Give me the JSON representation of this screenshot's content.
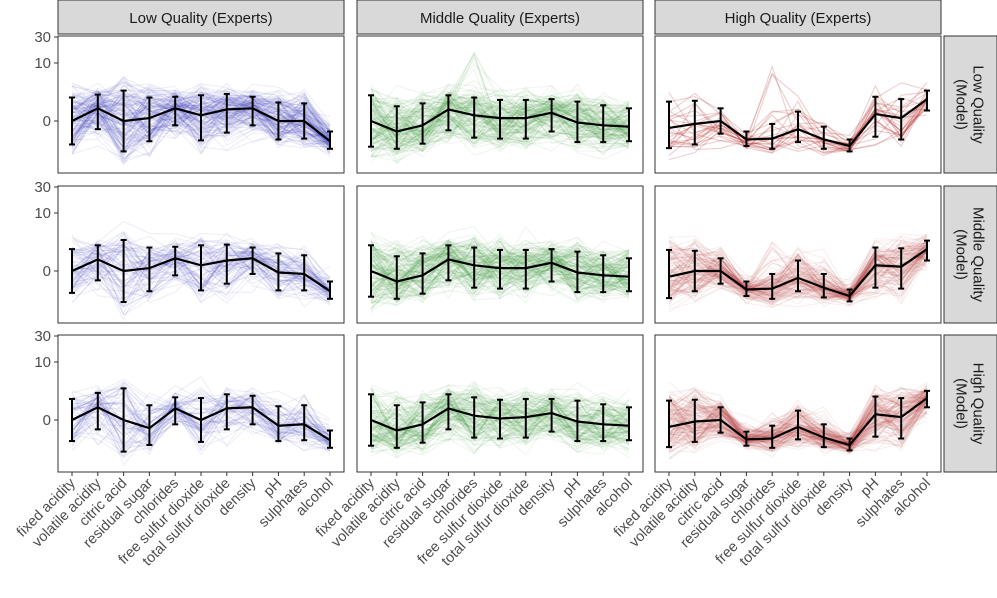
{
  "chart_data": {
    "type": "line",
    "description_kind": "faceted parallel-coordinates plot with mean line and error bars",
    "column_facets": [
      "Low Quality (Experts)",
      "Middle Quality (Experts)",
      "High Quality (Experts)"
    ],
    "row_facets": [
      {
        "line1": "Low Quality",
        "line2": "(Model)"
      },
      {
        "line1": "Middle Quality",
        "line2": "(Model)"
      },
      {
        "line1": "High Quality",
        "line2": "(Model)"
      }
    ],
    "categories": [
      "fixed acidity",
      "volatile acidity",
      "citric acid",
      "residual sugar",
      "chlorides",
      "free sulfur dioxide",
      "total sulfur dioxide",
      "density",
      "pH",
      "sulphates",
      "alcohol"
    ],
    "y_ticks": [
      0,
      10,
      30
    ],
    "y_scale": "pseudo-log (signed)",
    "ylim": [
      -7,
      30
    ],
    "column_colors": [
      "#1f1fa8",
      "#1e8a1e",
      "#b22222"
    ],
    "mean_line_color": "#000000",
    "panels": [
      {
        "row": 0,
        "col": 0,
        "density": 1.0,
        "spike": 0.0,
        "means": [
          0.0,
          1.0,
          0.0,
          0.2,
          1.0,
          0.4,
          0.9,
          1.0,
          0.0,
          0.0,
          -1.8
        ],
        "errors": [
          2.2,
          1.6,
          3.2,
          2.0,
          1.3,
          2.1,
          1.8,
          1.3,
          1.6,
          1.5,
          1.0
        ]
      },
      {
        "row": 0,
        "col": 1,
        "density": 1.0,
        "spike": 18.0,
        "means": [
          0.0,
          -0.8,
          -0.3,
          0.9,
          0.4,
          0.2,
          0.2,
          0.6,
          -0.1,
          -0.3,
          -0.4
        ],
        "errors": [
          2.5,
          2.0,
          1.8,
          1.6,
          1.8,
          1.7,
          1.7,
          1.4,
          1.8,
          1.6,
          1.4
        ]
      },
      {
        "row": 0,
        "col": 2,
        "density": 0.15,
        "spike": 9.0,
        "means": [
          -0.5,
          -0.2,
          0.0,
          -1.6,
          -1.5,
          -0.6,
          -1.6,
          -2.4,
          0.5,
          0.2,
          2.0
        ],
        "errors": [
          2.2,
          2.0,
          1.0,
          0.8,
          1.3,
          1.3,
          1.2,
          0.8,
          1.8,
          1.8,
          1.2
        ]
      },
      {
        "row": 1,
        "col": 0,
        "density": 0.55,
        "spike": 0.0,
        "means": [
          0.0,
          0.9,
          0.0,
          0.2,
          1.0,
          0.4,
          0.8,
          1.0,
          -0.1,
          -0.2,
          -1.8
        ],
        "errors": [
          2.0,
          1.6,
          3.3,
          2.0,
          1.3,
          2.1,
          1.8,
          1.2,
          1.6,
          1.5,
          1.0
        ]
      },
      {
        "row": 1,
        "col": 1,
        "density": 1.0,
        "spike": 6.0,
        "means": [
          0.0,
          -0.8,
          -0.3,
          0.9,
          0.4,
          0.2,
          0.2,
          0.6,
          -0.1,
          -0.3,
          -0.4
        ],
        "errors": [
          2.5,
          2.0,
          1.8,
          1.6,
          1.8,
          1.7,
          1.7,
          1.4,
          1.8,
          1.6,
          1.4
        ]
      },
      {
        "row": 1,
        "col": 2,
        "density": 0.9,
        "spike": 3.0,
        "means": [
          -0.4,
          0.0,
          0.0,
          -1.6,
          -1.5,
          -0.5,
          -1.4,
          -2.4,
          0.4,
          0.3,
          2.0
        ],
        "errors": [
          2.3,
          1.8,
          1.0,
          0.8,
          1.3,
          1.3,
          1.2,
          0.8,
          1.8,
          1.8,
          1.2
        ]
      },
      {
        "row": 2,
        "col": 0,
        "density": 0.45,
        "spike": 0.0,
        "means": [
          0.0,
          1.0,
          0.0,
          -0.6,
          0.9,
          0.0,
          0.9,
          1.0,
          -0.4,
          -0.3,
          -1.8
        ],
        "errors": [
          1.9,
          1.7,
          3.4,
          1.8,
          1.2,
          2.0,
          1.6,
          1.3,
          1.5,
          1.5,
          1.0
        ]
      },
      {
        "row": 2,
        "col": 1,
        "density": 0.9,
        "spike": 5.0,
        "means": [
          0.0,
          -0.8,
          -0.3,
          0.9,
          0.3,
          0.1,
          0.2,
          0.5,
          -0.1,
          -0.3,
          -0.4
        ],
        "errors": [
          2.5,
          2.0,
          1.8,
          1.6,
          1.8,
          1.7,
          1.7,
          1.4,
          1.8,
          1.6,
          1.4
        ]
      },
      {
        "row": 2,
        "col": 2,
        "density": 1.0,
        "spike": 0.0,
        "means": [
          -0.5,
          -0.1,
          0.0,
          -1.7,
          -1.6,
          -0.5,
          -1.5,
          -2.4,
          0.4,
          0.2,
          2.0
        ],
        "errors": [
          2.2,
          1.9,
          1.0,
          0.8,
          1.2,
          1.2,
          1.2,
          0.8,
          1.8,
          1.8,
          1.0
        ]
      }
    ]
  }
}
